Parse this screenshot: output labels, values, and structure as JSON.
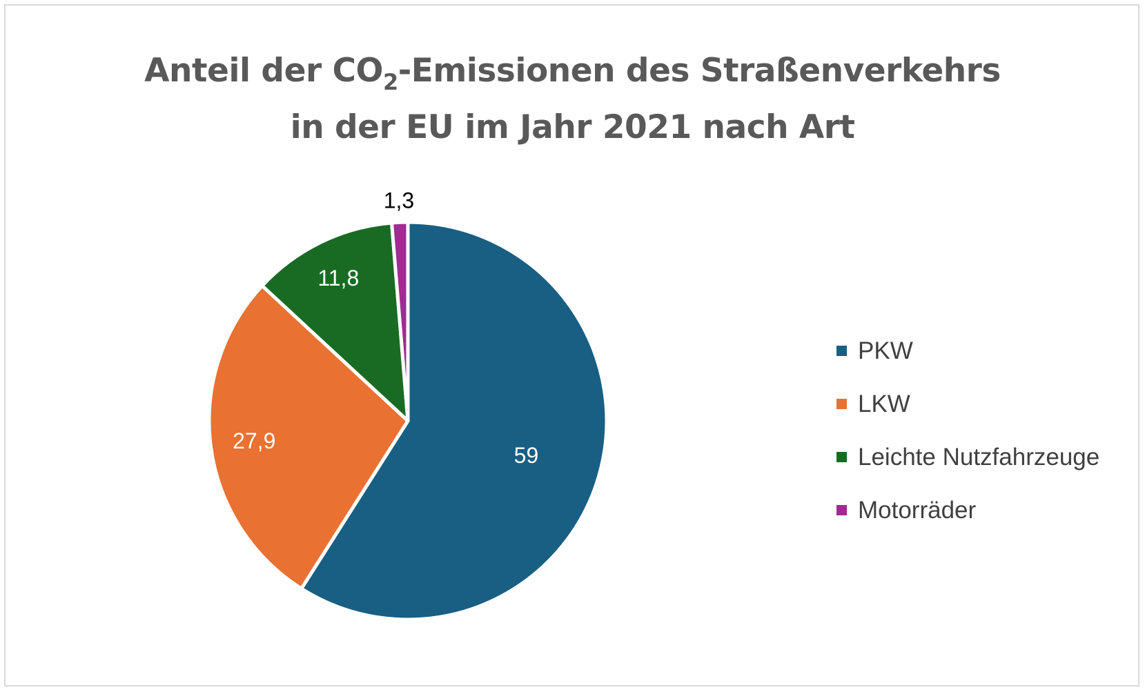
{
  "chart_data": {
    "type": "pie",
    "title_parts": {
      "line1_prefix": "Anteil der CO",
      "line1_subscript": "2",
      "line1_suffix": "-Emissionen des Straßenverkehrs",
      "line2": "in der EU im Jahr 2021 nach Art"
    },
    "categories": [
      "PKW",
      "LKW",
      "Leichte Nutzfahrzeuge",
      "Motorräder"
    ],
    "values": [
      59,
      27.9,
      11.8,
      1.3
    ],
    "data_labels": [
      "59",
      "27,9",
      "11,8",
      "1,3"
    ],
    "colors": [
      "#185f83",
      "#e97132",
      "#196b24",
      "#a02b93"
    ],
    "label_colors": [
      "#ffffff",
      "#ffffff",
      "#ffffff",
      "#000000"
    ],
    "legend_position": "right"
  }
}
